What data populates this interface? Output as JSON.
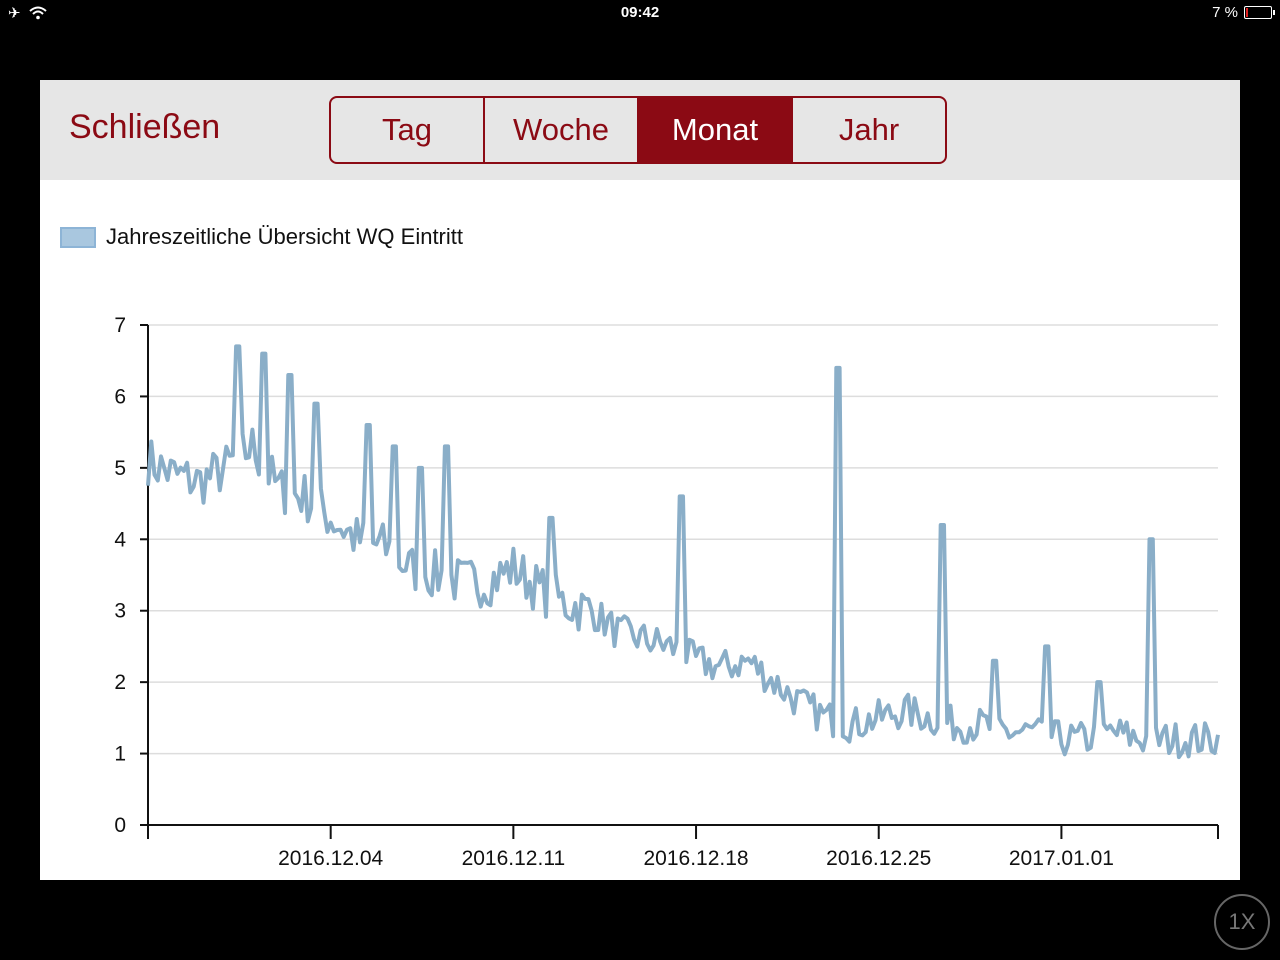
{
  "status_bar": {
    "time": "09:42",
    "battery_text": "7 %",
    "battery_level": 0.07,
    "icons": [
      "airplane-icon",
      "wifi-icon",
      "battery-icon"
    ]
  },
  "toolbar": {
    "close_label": "Schließen",
    "segments": [
      {
        "label": "Tag",
        "active": false
      },
      {
        "label": "Woche",
        "active": false
      },
      {
        "label": "Monat",
        "active": true
      },
      {
        "label": "Jahr",
        "active": false
      }
    ]
  },
  "colors": {
    "accent": "#8b0a14",
    "line": "#8aaec8",
    "toolbar_bg": "#e6e6e6"
  },
  "zoom_badge": "1X",
  "chart_data": {
    "type": "line",
    "legend": [
      "Jahreszeitliche Übersicht WQ Eintritt"
    ],
    "legend_placement": "top-left",
    "grid": true,
    "ylim": [
      0,
      7
    ],
    "yticks": [
      0,
      1,
      2,
      3,
      4,
      5,
      6,
      7
    ],
    "xlim": [
      "2016-11-27",
      "2017-01-07"
    ],
    "xticks": [
      "2016.12.04",
      "2016.12.11",
      "2016.12.18",
      "2016.12.25",
      "2017.01.01"
    ],
    "series": [
      {
        "name": "Jahreszeitliche Übersicht WQ Eintritt",
        "x": [
          "2016-11-27",
          "2016-11-28",
          "2016-11-29",
          "2016-11-30",
          "2016-12-01",
          "2016-12-02",
          "2016-12-03",
          "2016-12-04",
          "2016-12-05",
          "2016-12-06",
          "2016-12-07",
          "2016-12-08",
          "2016-12-09",
          "2016-12-10",
          "2016-12-11",
          "2016-12-12",
          "2016-12-13",
          "2016-12-14",
          "2016-12-15",
          "2016-12-16",
          "2016-12-17",
          "2016-12-18",
          "2016-12-19",
          "2016-12-20",
          "2016-12-21",
          "2016-12-22",
          "2016-12-23",
          "2016-12-24",
          "2016-12-25",
          "2016-12-26",
          "2016-12-27",
          "2016-12-28",
          "2016-12-29",
          "2016-12-30",
          "2016-12-31",
          "2017-01-01",
          "2017-01-02",
          "2017-01-03",
          "2017-01-04",
          "2017-01-05",
          "2017-01-06",
          "2017-01-07"
        ],
        "y": [
          5.1,
          4.9,
          4.8,
          5.0,
          5.3,
          4.7,
          4.6,
          4.3,
          4.0,
          3.9,
          3.6,
          3.5,
          3.4,
          3.4,
          3.6,
          3.3,
          3.1,
          3.0,
          2.7,
          2.6,
          2.5,
          2.3,
          2.2,
          2.3,
          2.0,
          1.7,
          1.5,
          1.4,
          1.5,
          1.6,
          1.5,
          1.4,
          1.4,
          1.3,
          1.3,
          1.2,
          1.2,
          1.3,
          1.2,
          1.2,
          1.2,
          1.2
        ]
      }
    ],
    "spikes": [
      {
        "x": "2016-11-30",
        "y": 6.7
      },
      {
        "x": "2016-12-01",
        "y": 6.6
      },
      {
        "x": "2016-12-02",
        "y": 6.3
      },
      {
        "x": "2016-12-03",
        "y": 5.9
      },
      {
        "x": "2016-12-05",
        "y": 5.6
      },
      {
        "x": "2016-12-06",
        "y": 5.3
      },
      {
        "x": "2016-12-07",
        "y": 5.0
      },
      {
        "x": "2016-12-08",
        "y": 5.3
      },
      {
        "x": "2016-12-12",
        "y": 4.3
      },
      {
        "x": "2016-12-17",
        "y": 4.6
      },
      {
        "x": "2016-12-23",
        "y": 6.4
      },
      {
        "x": "2016-12-27",
        "y": 4.2
      },
      {
        "x": "2016-12-29",
        "y": 2.3
      },
      {
        "x": "2016-12-31",
        "y": 2.5
      },
      {
        "x": "2017-01-02",
        "y": 2.0
      },
      {
        "x": "2017-01-04",
        "y": 4.0
      }
    ]
  }
}
